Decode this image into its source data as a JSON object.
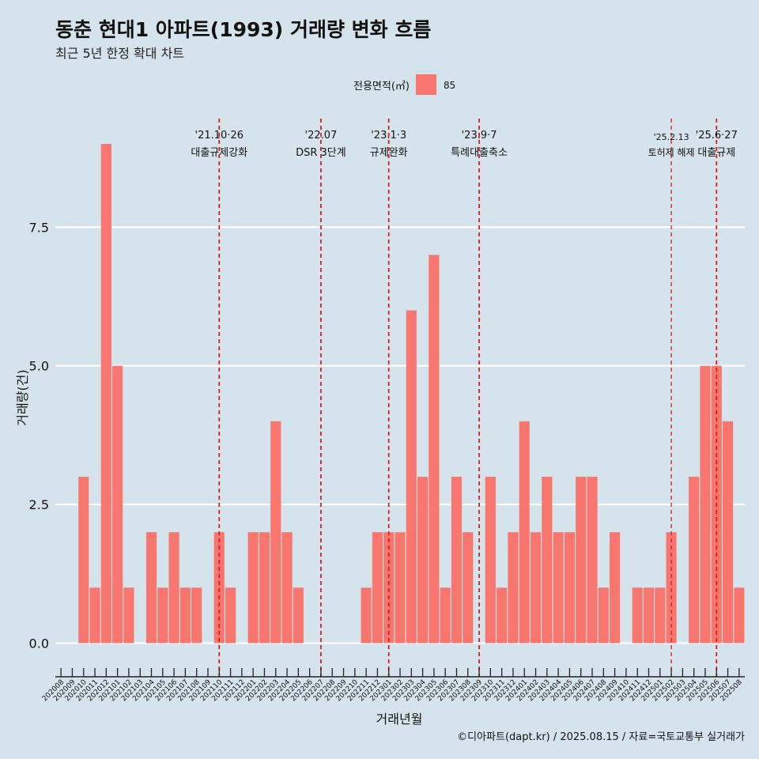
{
  "title": "동춘 현대1 아파트(1993) 거래량 변화 흐름",
  "subtitle": "최근 5년 한정 확대 차트",
  "caption": "©디아파트(dapt.kr) / 2025.08.15 / 자료=국토교통부 실거래가",
  "colors": {
    "bar": "#f8766d",
    "event_line": "#e31a1c",
    "background": "#d5e3ec",
    "grid": "#ffffff"
  },
  "chart_data": {
    "type": "bar",
    "xlabel": "거래년월",
    "ylabel": "거래량(건)",
    "ylim": [
      -0.45,
      9.6
    ],
    "yticks": [
      "0.0",
      "2.5",
      "5.0",
      "7.5"
    ],
    "ytick_values": [
      0,
      2.5,
      5,
      7.5
    ],
    "grid": true,
    "legend": {
      "title": "전용면적(㎡)",
      "position": "top",
      "entries": [
        "85"
      ]
    },
    "categories": [
      "202008",
      "202009",
      "202010",
      "202011",
      "202012",
      "202101",
      "202102",
      "202103",
      "202104",
      "202105",
      "202106",
      "202107",
      "202108",
      "202109",
      "202110",
      "202111",
      "202112",
      "202201",
      "202202",
      "202203",
      "202204",
      "202205",
      "202206",
      "202207",
      "202208",
      "202209",
      "202210",
      "202211",
      "202212",
      "202301",
      "202302",
      "202303",
      "202304",
      "202305",
      "202306",
      "202307",
      "202308",
      "202309",
      "202310",
      "202311",
      "202312",
      "202401",
      "202402",
      "202403",
      "202404",
      "202405",
      "202406",
      "202407",
      "202408",
      "202409",
      "202410",
      "202411",
      "202412",
      "202501",
      "202502",
      "202503",
      "202504",
      "202505",
      "202506",
      "202507",
      "202508"
    ],
    "series": [
      {
        "name": "85",
        "values": [
          0,
          0,
          3,
          1,
          9,
          5,
          1,
          0,
          2,
          1,
          2,
          1,
          1,
          0,
          2,
          1,
          0,
          2,
          2,
          4,
          2,
          1,
          0,
          0,
          0,
          0,
          0,
          1,
          2,
          2,
          2,
          6,
          3,
          7,
          1,
          3,
          2,
          0,
          3,
          1,
          2,
          4,
          2,
          3,
          2,
          2,
          3,
          3,
          1,
          2,
          0,
          1,
          1,
          1,
          2,
          0,
          3,
          5,
          5,
          4,
          1
        ]
      }
    ],
    "events": [
      {
        "date": "202110",
        "label_top": "'21.10·26",
        "label_bottom": "대출규제강화",
        "small": false
      },
      {
        "date": "202207",
        "label_top": "'22.07",
        "label_bottom": "DSR 3단계",
        "small": false
      },
      {
        "date": "202301",
        "label_top": "'23.1·3",
        "label_bottom": "규제완화",
        "small": false
      },
      {
        "date": "202309",
        "label_top": "'23.9·7",
        "label_bottom": "특례대출축소",
        "small": false
      },
      {
        "date": "202502",
        "label_top": "'25.2.13",
        "label_bottom": "토허제 해제",
        "small": true
      },
      {
        "date": "202506",
        "label_top": "'25.6·27",
        "label_bottom": "대출규제",
        "small": false
      }
    ]
  }
}
